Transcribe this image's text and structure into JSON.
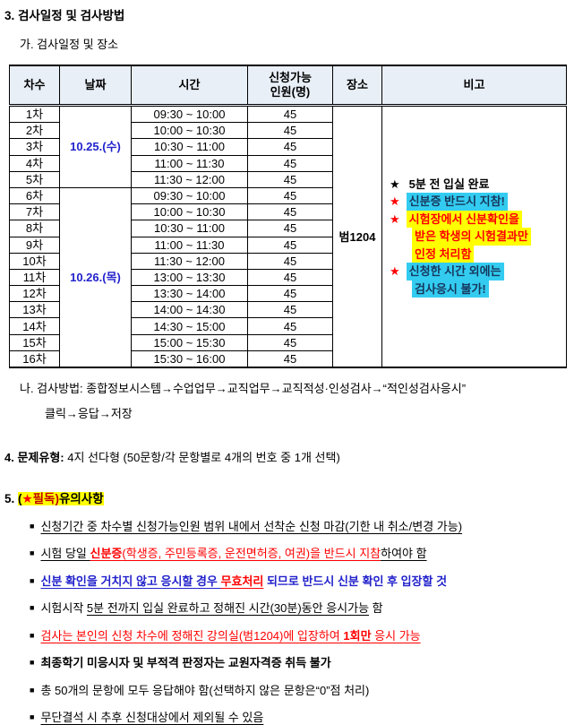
{
  "colors": {
    "date_blue": "#2222cc",
    "navy_text": "#17375e",
    "cyan_highlight": "#33ccf0",
    "yellow_highlight": "#ffff00",
    "red": "#ff0000",
    "dark_red": "#c00000",
    "header_bg": "#e9eff7",
    "black": "#000000"
  },
  "page": {
    "section3_title": "3. 검사일정 및 검사방법",
    "section3a_title": "가. 검사일정 및 장소",
    "method_line1": "나. 검사방법: 종합정보시스템→수업업무→교직업무→교직적성·인성검사→“적인성검사응시”",
    "method_line2": "클릭→응답→저장",
    "section4_lead": "4. 문제유형:",
    "section4_rest": " 4지 선다형 (50문항/각 문항별로 4개의 번호 중 1개 선택)",
    "section5_prefix": "5. ",
    "section5_segments": [
      {
        "t": "(",
        "c": "#000000",
        "b": true,
        "bg": "#ffff00"
      },
      {
        "t": "★",
        "c": "#ff0000",
        "b": true,
        "bg": "#ffff00"
      },
      {
        "t": "필독)",
        "c": "#c00000",
        "b": true,
        "bg": "#ffff00"
      },
      {
        "t": "유의사항 ",
        "c": "#000000",
        "b": true,
        "bg": "#ffff00"
      }
    ]
  },
  "schedule_table": {
    "headers": [
      "차수",
      "날짜",
      "시간",
      "신청가능\n인원(명)",
      "장소",
      "비고"
    ],
    "dates": [
      {
        "label": "10.25.(수)",
        "row_span": 5
      },
      {
        "label": "10.26.(목)",
        "row_span": 11
      }
    ],
    "place": "범1204",
    "rows": [
      {
        "round": "1차",
        "time": "09:30 ~ 10:00",
        "capacity": "45"
      },
      {
        "round": "2차",
        "time": "10:00 ~ 10:30",
        "capacity": "45"
      },
      {
        "round": "3차",
        "time": "10:30 ~ 11:00",
        "capacity": "45"
      },
      {
        "round": "4차",
        "time": "11:00 ~ 11:30",
        "capacity": "45"
      },
      {
        "round": "5차",
        "time": "11:30 ~ 12:00",
        "capacity": "45"
      },
      {
        "round": "6차",
        "time": "09:30 ~ 10:00",
        "capacity": "45"
      },
      {
        "round": "7차",
        "time": "10:00 ~ 10:30",
        "capacity": "45"
      },
      {
        "round": "8차",
        "time": "10:30 ~ 11:00",
        "capacity": "45"
      },
      {
        "round": "9차",
        "time": "11:00 ~ 11:30",
        "capacity": "45"
      },
      {
        "round": "10차",
        "time": "11:30 ~ 12:00",
        "capacity": "45"
      },
      {
        "round": "11차",
        "time": "13:00 ~ 13:30",
        "capacity": "45"
      },
      {
        "round": "12차",
        "time": "13:30 ~ 14:00",
        "capacity": "45"
      },
      {
        "round": "13차",
        "time": "14:00 ~ 14:30",
        "capacity": "45"
      },
      {
        "round": "14차",
        "time": "14:30 ~ 15:00",
        "capacity": "45"
      },
      {
        "round": "15차",
        "time": "15:00 ~ 15:30",
        "capacity": "45"
      },
      {
        "round": "16차",
        "time": "15:30 ~ 16:00",
        "capacity": "45"
      }
    ],
    "remarks": [
      {
        "star": "★",
        "star_color": "#000000",
        "color": "#000000",
        "bg": "none",
        "lines": [
          "5분 전 입실 완료"
        ]
      },
      {
        "star": "★",
        "star_color": "#ff0000",
        "color": "#17375e",
        "bg": "#33ccf0",
        "lines": [
          "신분증 반드시 지참!"
        ]
      },
      {
        "star": "★",
        "star_color": "#ff0000",
        "color": "#ff0000",
        "bg": "#ffff00",
        "lines": [
          "시험장에서 신분확인을",
          "받은 학생의 시험결과만",
          "인정 처리함"
        ]
      },
      {
        "star": "★",
        "star_color": "#ff0000",
        "color": "#17375e",
        "bg": "#33ccf0",
        "lines": [
          "신청한 시간 외에는",
          "검사응시 불가!"
        ]
      }
    ]
  },
  "notices": {
    "bullet_char": "■",
    "items": [
      {
        "segments": [
          {
            "t": "신청기간 중 차수별 신청가능인원 범위 내에서 선착순 신청 마감(기한 내 취소/변경 가능)",
            "c": "#000000",
            "u": true
          }
        ]
      },
      {
        "segments": [
          {
            "t": "시험 당일 ",
            "c": "#000000",
            "u": true
          },
          {
            "t": "신분증",
            "c": "#ff0000",
            "b": true,
            "u": true
          },
          {
            "t": "(학생증, 주민등록증, 운전면허증, 여권)을 반드시 지참",
            "c": "#ff0000",
            "u": true
          },
          {
            "t": "하여야 함",
            "c": "#000000",
            "u": true
          }
        ]
      },
      {
        "segments": [
          {
            "t": "신분 확인을 거치지 않고 응시할 경우 ",
            "c": "#2222cc",
            "b": true,
            "u": true
          },
          {
            "t": "무효처리",
            "c": "#ff0000",
            "b": true,
            "u": true
          },
          {
            "t": " 되므로 반드시 신분 확인 후 입장할 것",
            "c": "#2222cc",
            "b": true
          }
        ]
      },
      {
        "segments": [
          {
            "t": "시험시작 ",
            "c": "#000000"
          },
          {
            "t": "5분 전까지 입실 완료하고 정해진 시간(30분)동안 응시가능",
            "c": "#000000",
            "u": true
          },
          {
            "t": " 함",
            "c": "#000000"
          }
        ]
      },
      {
        "segments": [
          {
            "t": "검사는 본인의 신청 차수에 정해진 강의실(범1204)에 입장하여 ",
            "c": "#ff0000",
            "u": true
          },
          {
            "t": "1회만",
            "c": "#ff0000",
            "b": true,
            "u": true
          },
          {
            "t": " 응시 가능",
            "c": "#ff0000",
            "u": true
          }
        ]
      },
      {
        "segments": [
          {
            "t": "최종학기 미응시자 및 부적격 판정자는 교원자격증 취득 불가",
            "c": "#000000",
            "b": true
          }
        ]
      },
      {
        "segments": [
          {
            "t": "총 50개의 문항에 모두 응답해야 함(선택하지 않은 문항은“0”점 처리)",
            "c": "#000000"
          }
        ]
      },
      {
        "segments": [
          {
            "t": "무단결석 시 추후 신청대상에서 제외될 수 있음",
            "c": "#000000",
            "u": true
          }
        ]
      }
    ]
  }
}
